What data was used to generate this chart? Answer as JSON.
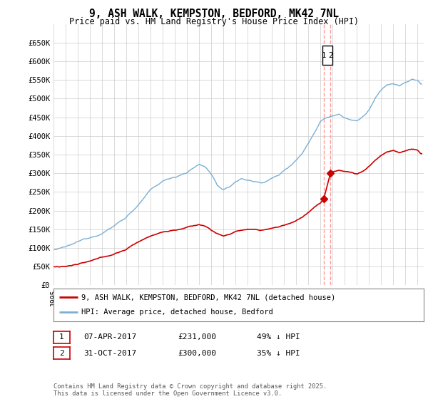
{
  "title": "9, ASH WALK, KEMPSTON, BEDFORD, MK42 7NL",
  "subtitle": "Price paid vs. HM Land Registry's House Price Index (HPI)",
  "ylim": [
    0,
    700000
  ],
  "yticks": [
    0,
    50000,
    100000,
    150000,
    200000,
    250000,
    300000,
    350000,
    400000,
    450000,
    500000,
    550000,
    600000,
    650000
  ],
  "ytick_labels": [
    "£0",
    "£50K",
    "£100K",
    "£150K",
    "£200K",
    "£250K",
    "£300K",
    "£350K",
    "£400K",
    "£450K",
    "£500K",
    "£550K",
    "£600K",
    "£650K"
  ],
  "xlim_start": 1995.0,
  "xlim_end": 2025.5,
  "hpi_color": "#7bafd4",
  "price_color": "#cc0000",
  "transaction_line_color": "#ff9999",
  "transaction1_x": 2017.27,
  "transaction1_y": 231000,
  "transaction2_x": 2017.83,
  "transaction2_y": 300000,
  "legend_line1": "9, ASH WALK, KEMPSTON, BEDFORD, MK42 7NL (detached house)",
  "legend_line2": "HPI: Average price, detached house, Bedford",
  "table_row1": [
    "1",
    "07-APR-2017",
    "£231,000",
    "49% ↓ HPI"
  ],
  "table_row2": [
    "2",
    "31-OCT-2017",
    "£300,000",
    "35% ↓ HPI"
  ],
  "footnote": "Contains HM Land Registry data © Crown copyright and database right 2025.\nThis data is licensed under the Open Government Licence v3.0.",
  "background_color": "#ffffff",
  "grid_color": "#cccccc"
}
